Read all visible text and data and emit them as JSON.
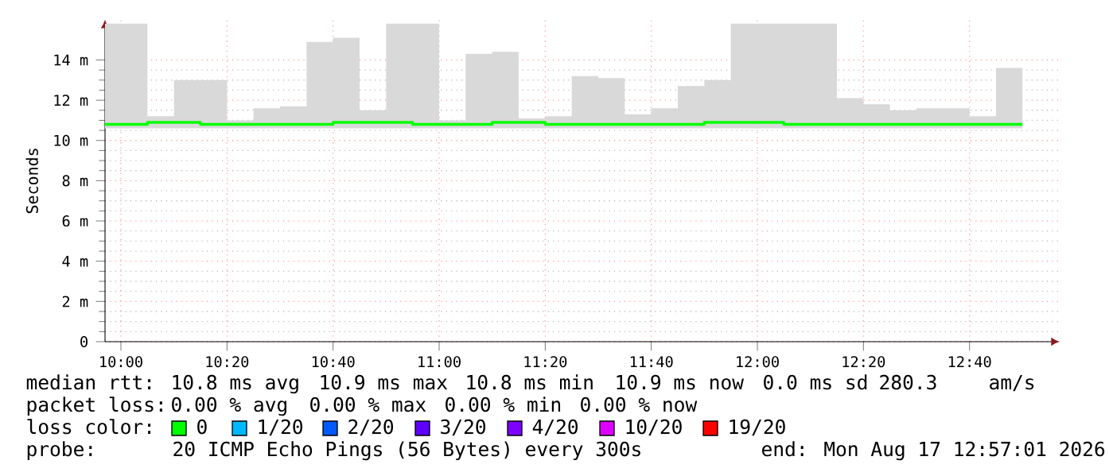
{
  "chart_data": {
    "type": "step",
    "ylabel": "Seconds",
    "grid": true,
    "x": [
      9.95,
      10.0833,
      10.1667,
      10.25,
      10.3333,
      10.4167,
      10.5,
      10.5833,
      10.6667,
      10.75,
      10.8333,
      10.9167,
      11,
      11.0833,
      11.1667,
      11.25,
      11.3333,
      11.4167,
      11.5,
      11.5833,
      11.6667,
      11.75,
      11.8333,
      11.9167,
      12,
      12.0833,
      12.1667,
      12.25,
      12.3333,
      12.4167,
      12.5,
      12.5833,
      12.6667,
      12.75,
      12.8333
    ],
    "series": [
      {
        "color": "#00ff00",
        "values": [
          10.8,
          10.8,
          10.9,
          10.9,
          10.8,
          10.8,
          10.8,
          10.8,
          10.8,
          10.9,
          10.9,
          10.9,
          10.8,
          10.8,
          10.8,
          10.9,
          10.9,
          10.8,
          10.8,
          10.8,
          10.8,
          10.8,
          10.8,
          10.9,
          10.9,
          10.9,
          10.8,
          10.8,
          10.8,
          10.8,
          10.8,
          10.8,
          10.8,
          10.8,
          10.8
        ],
        "lower": [
          10.6,
          10.6,
          10.6,
          10.6,
          10.6,
          10.6,
          10.6,
          10.6,
          10.6,
          10.6,
          10.6,
          10.6,
          10.6,
          10.6,
          10.6,
          10.6,
          10.6,
          10.6,
          10.6,
          10.6,
          10.6,
          10.6,
          10.6,
          10.6,
          10.6,
          10.6,
          10.6,
          10.6,
          10.6,
          10.6,
          10.6,
          10.6,
          10.6,
          10.6,
          10.6
        ],
        "upper": [
          15.8,
          15.8,
          11.2,
          13.0,
          13.0,
          11.0,
          11.6,
          11.7,
          14.9,
          15.1,
          11.5,
          15.8,
          15.8,
          11.0,
          14.3,
          14.4,
          11.1,
          11.2,
          13.2,
          13.1,
          11.3,
          11.6,
          12.7,
          13.0,
          15.8,
          15.8,
          15.8,
          15.8,
          12.1,
          11.8,
          11.5,
          11.6,
          11.6,
          11.2,
          13.6
        ]
      }
    ],
    "xlim": [
      9.95,
      12.95
    ],
    "ylim": [
      0,
      16
    ],
    "xticks": [
      {
        "value": 10,
        "label": "10:00"
      },
      {
        "value": 10.3333,
        "label": "10:20"
      },
      {
        "value": 10.6667,
        "label": "10:40"
      },
      {
        "value": 11,
        "label": "11:00"
      },
      {
        "value": 11.3333,
        "label": "11:20"
      },
      {
        "value": 11.6667,
        "label": "11:40"
      },
      {
        "value": 12,
        "label": "12:00"
      },
      {
        "value": 12.3333,
        "label": "12:20"
      },
      {
        "value": 12.6667,
        "label": "12:40"
      }
    ],
    "yticks": [
      0,
      {
        "value": 2,
        "label": "2 m"
      },
      {
        "value": 4,
        "label": "4 m"
      },
      {
        "value": 6,
        "label": "6 m"
      },
      {
        "value": 8,
        "label": "8 m"
      },
      {
        "value": 10,
        "label": "10 m"
      },
      {
        "value": 12,
        "label": "12 m"
      },
      {
        "value": 14,
        "label": "14 m"
      }
    ],
    "annotations": [
      "median rtt:",
      "10.8 ms avg",
      "10.9 ms max",
      "10.8 ms min",
      "10.9 ms now",
      "0.0 ms sd",
      "280.3",
      "am/s",
      "packet loss:",
      "0.00 % avg",
      "0.00 % max",
      "0.00 % min",
      "0.00 % now",
      "loss color:",
      "0",
      "1/20",
      "2/20",
      "3/20",
      "4/20",
      "10/20",
      "19/20",
      "probe:",
      "20 ICMP Echo Pings (56 Bytes) every 300s",
      "end: Mon Aug 17 12:57:01 2026"
    ]
  }
}
